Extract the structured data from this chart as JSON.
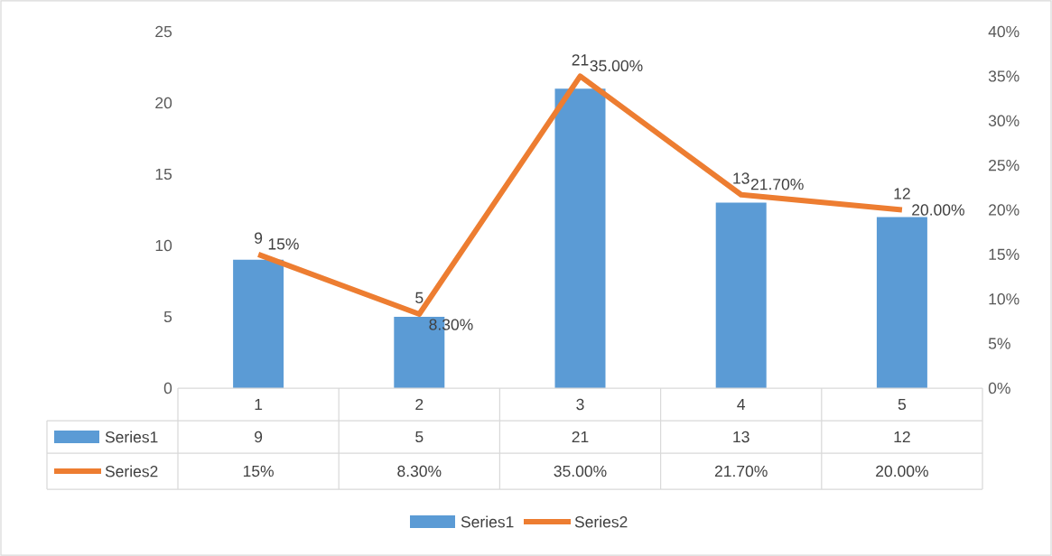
{
  "chart_data": {
    "type": "bar",
    "categories": [
      "1",
      "2",
      "3",
      "4",
      "5"
    ],
    "series": [
      {
        "name": "Series1",
        "color": "#5b9bd5",
        "values": [
          9,
          5,
          21,
          13,
          12
        ],
        "value_labels": [
          "9",
          "5",
          "21",
          "13",
          "12"
        ]
      },
      {
        "name": "Series2",
        "type": "line",
        "axis": "y2",
        "color": "#ed7d31",
        "values": [
          15,
          8.3,
          35,
          21.7,
          20
        ],
        "value_labels": [
          "15%",
          "8.30%",
          "35.00%",
          "21.70%",
          "20.00%"
        ]
      }
    ],
    "ylim": [
      0,
      25
    ],
    "yticks": [
      0,
      5,
      10,
      15,
      20,
      25
    ],
    "y2lim": [
      0,
      40
    ],
    "y2ticks": [
      {
        "value": 0,
        "label": "0%"
      },
      {
        "value": 5,
        "label": "5%"
      },
      {
        "value": 10,
        "label": "10%"
      },
      {
        "value": 15,
        "label": "15%"
      },
      {
        "value": 20,
        "label": "20%"
      },
      {
        "value": 25,
        "label": "25%"
      },
      {
        "value": 30,
        "label": "30%"
      },
      {
        "value": 35,
        "label": "35%"
      },
      {
        "value": 40,
        "label": "40%"
      }
    ],
    "grid": false,
    "legend": "bottom"
  }
}
